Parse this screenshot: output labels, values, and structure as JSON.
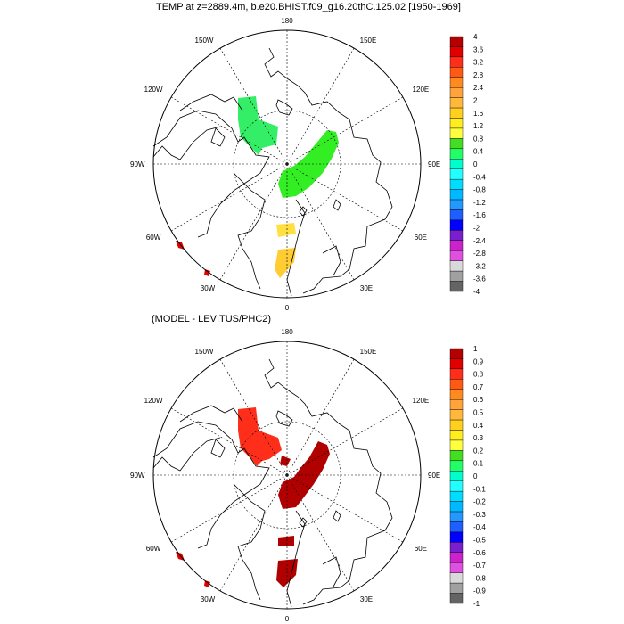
{
  "panels": [
    {
      "title": "TEMP at z=2889.4m, b.e20.BHIST.f09_g16.20thC.125.02 [1950-1969]",
      "colorbar": {
        "labels": [
          "4",
          "3.6",
          "3.2",
          "2.8",
          "2.4",
          "2",
          "1.6",
          "1.2",
          "0.8",
          "0.4",
          "0",
          "-0.4",
          "-0.8",
          "-1.2",
          "-1.6",
          "-2",
          "-2.4",
          "-2.8",
          "-3.2",
          "-3.6",
          "-4"
        ]
      }
    },
    {
      "title": "(MODEL - LEVITUS/PHC2)",
      "colorbar": {
        "labels": [
          "1",
          "0.9",
          "0.8",
          "0.7",
          "0.6",
          "0.5",
          "0.4",
          "0.3",
          "0.2",
          "0.1",
          "0",
          "-0.1",
          "-0.2",
          "-0.3",
          "-0.4",
          "-0.5",
          "-0.6",
          "-0.7",
          "-0.8",
          "-0.9",
          "-1"
        ]
      }
    }
  ],
  "colorbar_colors": [
    "#b40000",
    "#e00000",
    "#ff2e1a",
    "#ff5a14",
    "#ff8a1e",
    "#ffa33a",
    "#ffb83a",
    "#ffd01e",
    "#ffee1c",
    "#ffff40",
    "#44dd22",
    "#22ff66",
    "#00ffcc",
    "#22ffff",
    "#00ddff",
    "#00b8ff",
    "#2299ff",
    "#1f5fff",
    "#0000ff",
    "#7a1fd0",
    "#cc22cc",
    "#e050e0",
    "#d9d9d9",
    "#a0a0a0",
    "#646464"
  ],
  "longitude_labels": {
    "top": "180",
    "bottom": "0",
    "left": "90W",
    "right": "90E",
    "ul1": "150W",
    "ul2": "120W",
    "ur1": "150E",
    "ur2": "120E",
    "ll1": "60W",
    "ll2": "30W",
    "lr1": "60E",
    "lr2": "30E"
  },
  "fields": {
    "top": [
      {
        "name": "green-blob-canada",
        "color": "#33ee66"
      },
      {
        "name": "green-blob-eurasian",
        "color": "#33ee22"
      },
      {
        "name": "yellow-blob-1",
        "color": "#ffe040"
      },
      {
        "name": "yellow-blob-2",
        "color": "#ffcc33"
      },
      {
        "name": "red-spot-1",
        "color": "#e00000"
      },
      {
        "name": "red-spot-2",
        "color": "#e00000"
      }
    ],
    "bottom": [
      {
        "name": "red-blob-canada",
        "color": "#ff2e1a"
      },
      {
        "name": "darkred-blob-eurasian",
        "color": "#b00000"
      },
      {
        "name": "darkred-blob-1",
        "color": "#b00000"
      },
      {
        "name": "darkred-blob-2",
        "color": "#b00000"
      },
      {
        "name": "darkred-blob-3",
        "color": "#b00000"
      },
      {
        "name": "red-spot-1",
        "color": "#e00000"
      },
      {
        "name": "red-spot-2",
        "color": "#e00000"
      }
    ]
  }
}
